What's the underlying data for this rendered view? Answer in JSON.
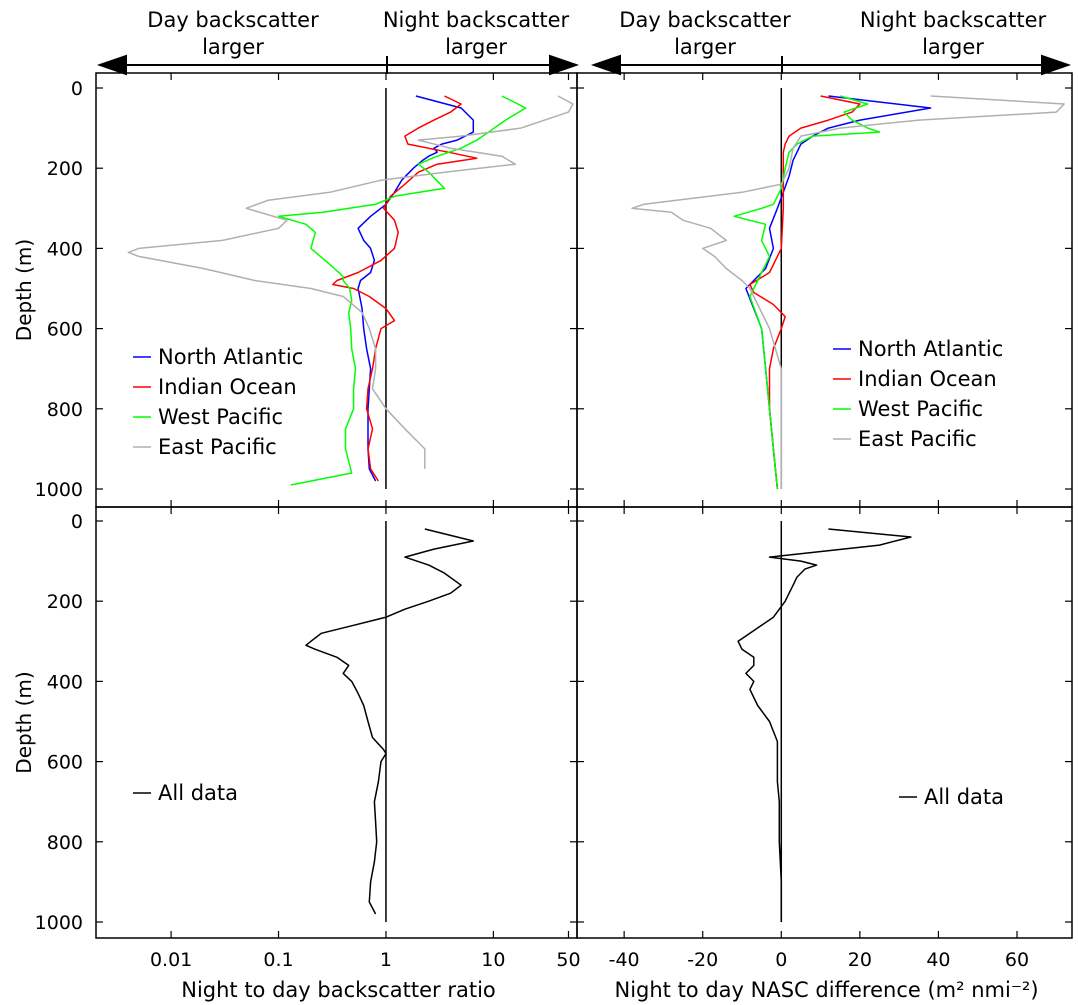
{
  "header": {
    "left_day": "Day backscatter\nlarger",
    "left_night": "Night backscatter\nlarger",
    "right_day": "Day backscatter\nlarger",
    "right_night": "Night backscatter\nlarger"
  },
  "colors": {
    "North Atlantic": "#0000ff",
    "Indian Ocean": "#ff0000",
    "West Pacific": "#00ff00",
    "East Pacific": "#b0b0b0",
    "All data": "#000000"
  },
  "chart_data": [
    {
      "id": "top-left",
      "type": "line",
      "orientation": "depth-profile",
      "xscale": "log",
      "xlim": [
        0.002,
        60
      ],
      "ylim": [
        1030,
        -40
      ],
      "reference_x": 1,
      "xticks": [
        0.01,
        0.1,
        1,
        10,
        50
      ],
      "xticklabels": [],
      "yticks": [
        0,
        200,
        400,
        600,
        800,
        1000
      ],
      "yticklabels": [
        "0",
        "200",
        "400",
        "600",
        "800",
        "1000"
      ],
      "ylabel": "Depth (m)",
      "xlabel": "",
      "legend_position": "center-left",
      "series": [
        {
          "name": "North Atlantic",
          "depth": [
            20,
            50,
            80,
            110,
            130,
            140,
            150,
            160,
            170,
            180,
            200,
            230,
            260,
            290,
            320,
            350,
            380,
            400,
            430,
            460,
            480,
            500,
            550,
            600,
            650,
            700,
            750,
            800,
            850,
            900,
            950,
            980
          ],
          "values": [
            1.9,
            5,
            6.5,
            6.5,
            4.6,
            3.3,
            2.8,
            3.0,
            2.5,
            2.2,
            1.8,
            1.4,
            1.2,
            1.0,
            0.72,
            0.55,
            0.62,
            0.72,
            0.78,
            0.72,
            0.58,
            0.55,
            0.6,
            0.62,
            0.66,
            0.72,
            0.7,
            0.68,
            0.68,
            0.68,
            0.7,
            0.8
          ]
        },
        {
          "name": "Indian Ocean",
          "depth": [
            20,
            40,
            60,
            80,
            100,
            120,
            140,
            160,
            175,
            190,
            210,
            240,
            270,
            300,
            330,
            360,
            400,
            430,
            460,
            480,
            490,
            500,
            520,
            550,
            580,
            600,
            650,
            700,
            750,
            800,
            850,
            900,
            950,
            980
          ],
          "values": [
            3.5,
            5.0,
            4.0,
            2.8,
            2.0,
            1.5,
            1.6,
            3.8,
            7.0,
            3.0,
            2.0,
            1.5,
            1.1,
            0.95,
            1.2,
            1.3,
            1.2,
            0.9,
            0.55,
            0.35,
            0.32,
            0.5,
            0.7,
            1.0,
            1.2,
            0.9,
            0.8,
            0.75,
            0.68,
            0.66,
            0.75,
            0.68,
            0.72,
            0.85
          ]
        },
        {
          "name": "West Pacific",
          "depth": [
            20,
            50,
            80,
            110,
            130,
            150,
            170,
            190,
            210,
            250,
            270,
            290,
            310,
            320,
            340,
            360,
            400,
            440,
            470,
            480,
            500,
            530,
            560,
            600,
            650,
            700,
            750,
            800,
            850,
            900,
            960,
            990
          ],
          "values": [
            12,
            20,
            13,
            9,
            7,
            5.0,
            3.0,
            2.0,
            2.5,
            3.5,
            1.2,
            0.8,
            0.26,
            0.1,
            0.18,
            0.22,
            0.2,
            0.3,
            0.4,
            0.4,
            0.46,
            0.48,
            0.45,
            0.47,
            0.48,
            0.52,
            0.5,
            0.5,
            0.42,
            0.42,
            0.48,
            0.13
          ]
        },
        {
          "name": "East Pacific",
          "depth": [
            20,
            40,
            60,
            80,
            100,
            120,
            130,
            150,
            170,
            190,
            210,
            230,
            260,
            280,
            300,
            330,
            350,
            380,
            400,
            410,
            420,
            450,
            480,
            500,
            520,
            560,
            600,
            650,
            700,
            750,
            800,
            850,
            900,
            950
          ],
          "values": [
            40,
            55,
            50,
            30,
            18,
            5,
            2,
            4,
            12,
            16,
            3.5,
            0.9,
            0.3,
            0.08,
            0.05,
            0.12,
            0.1,
            0.03,
            0.005,
            0.004,
            0.005,
            0.02,
            0.06,
            0.2,
            0.4,
            0.6,
            0.7,
            0.8,
            0.8,
            0.75,
            1.0,
            1.5,
            2.3,
            2.3
          ]
        }
      ]
    },
    {
      "id": "top-right",
      "type": "line",
      "orientation": "depth-profile",
      "xlim": [
        -52,
        74
      ],
      "ylim": [
        1030,
        -40
      ],
      "reference_x": 0,
      "xticks": [
        -40,
        -20,
        0,
        20,
        40,
        60
      ],
      "xticklabels": [],
      "yticks": [
        0,
        200,
        400,
        600,
        800,
        1000
      ],
      "yticklabels": [],
      "ylabel": "",
      "xlabel": "",
      "legend_position": "center-right",
      "series": [
        {
          "name": "North Atlantic",
          "depth": [
            20,
            50,
            80,
            100,
            120,
            140,
            160,
            180,
            220,
            300,
            350,
            400,
            450,
            480,
            500,
            550,
            600,
            700,
            800,
            900,
            1000
          ],
          "values": [
            12,
            38,
            20,
            12,
            8,
            5,
            4,
            3,
            2,
            -1,
            -3,
            -2,
            -4,
            -7,
            -9,
            -7,
            -5,
            -4,
            -3,
            -2,
            -1
          ]
        },
        {
          "name": "Indian Ocean",
          "depth": [
            20,
            40,
            60,
            80,
            100,
            120,
            140,
            160,
            200,
            250,
            300,
            400,
            460,
            490,
            510,
            540,
            570,
            600,
            650,
            700,
            800,
            900,
            1000
          ],
          "values": [
            10,
            20,
            18,
            12,
            5,
            2,
            1,
            0.5,
            0.5,
            0.5,
            0.5,
            0,
            -3,
            -8,
            -7,
            -2,
            1,
            0,
            -2,
            -3,
            -3,
            -2,
            -1
          ]
        },
        {
          "name": "West Pacific",
          "depth": [
            20,
            40,
            60,
            80,
            100,
            110,
            120,
            140,
            160,
            200,
            250,
            290,
            300,
            320,
            340,
            380,
            420,
            480,
            520,
            600,
            700,
            800,
            900,
            1000
          ],
          "values": [
            15,
            22,
            16,
            18,
            22,
            25,
            8,
            4,
            2,
            1,
            0,
            -2,
            -5,
            -12,
            -4,
            -5,
            -3,
            -6,
            -8,
            -5,
            -4,
            -3,
            -2,
            -1
          ]
        },
        {
          "name": "East Pacific",
          "depth": [
            20,
            40,
            60,
            80,
            100,
            120,
            150,
            200,
            240,
            260,
            290,
            300,
            310,
            330,
            350,
            380,
            400,
            420,
            450,
            480,
            500,
            600,
            700,
            800,
            900,
            1000
          ],
          "values": [
            38,
            72,
            70,
            35,
            15,
            5,
            3,
            2,
            0,
            -10,
            -35,
            -38,
            -28,
            -25,
            -18,
            -14,
            -20,
            -17,
            -14,
            -10,
            -8,
            -3,
            0,
            0,
            0,
            0
          ]
        }
      ]
    },
    {
      "id": "bottom-left",
      "type": "line",
      "orientation": "depth-profile",
      "xscale": "log",
      "xlim": [
        0.002,
        60
      ],
      "ylim": [
        1030,
        -40
      ],
      "reference_x": 1,
      "xticks": [
        0.01,
        0.1,
        1,
        10,
        50
      ],
      "xticklabels": [
        "0.01",
        "0.1",
        "1",
        "10",
        "50"
      ],
      "yticks": [
        0,
        200,
        400,
        600,
        800,
        1000
      ],
      "yticklabels": [
        "0",
        "200",
        "400",
        "600",
        "800",
        "1000"
      ],
      "ylabel": "Depth (m)",
      "xlabel": "Night to day backscatter ratio",
      "legend_position": "center-left",
      "series": [
        {
          "name": "All data",
          "depth": [
            20,
            50,
            70,
            90,
            110,
            130,
            160,
            180,
            200,
            220,
            240,
            260,
            280,
            300,
            310,
            320,
            340,
            360,
            380,
            400,
            430,
            460,
            500,
            540,
            570,
            580,
            600,
            650,
            700,
            750,
            800,
            850,
            900,
            950,
            980
          ],
          "values": [
            2.3,
            6.5,
            2.8,
            1.5,
            2.5,
            3.5,
            5.0,
            4.0,
            2.5,
            1.5,
            1.0,
            0.5,
            0.25,
            0.2,
            0.18,
            0.22,
            0.35,
            0.45,
            0.4,
            0.48,
            0.55,
            0.62,
            0.68,
            0.75,
            0.95,
            1.0,
            0.9,
            0.85,
            0.78,
            0.8,
            0.82,
            0.78,
            0.72,
            0.7,
            0.8
          ]
        }
      ]
    },
    {
      "id": "bottom-right",
      "type": "line",
      "orientation": "depth-profile",
      "xlim": [
        -52,
        74
      ],
      "ylim": [
        1030,
        -40
      ],
      "reference_x": 0,
      "xticks": [
        -40,
        -20,
        0,
        20,
        40,
        60
      ],
      "xticklabels": [
        "-40",
        "-20",
        "0",
        "20",
        "40",
        "60"
      ],
      "yticks": [
        0,
        200,
        400,
        600,
        800,
        1000
      ],
      "yticklabels": [],
      "ylabel": "",
      "xlabel": "Night to day NASC difference (m² nmi⁻²)",
      "legend_position": "center-right",
      "series": [
        {
          "name": "All data",
          "depth": [
            20,
            40,
            60,
            90,
            100,
            110,
            120,
            140,
            160,
            180,
            200,
            240,
            260,
            280,
            300,
            320,
            340,
            360,
            380,
            400,
            420,
            460,
            500,
            550,
            600,
            650,
            700,
            800,
            900,
            1000
          ],
          "values": [
            12,
            33,
            25,
            -3,
            5,
            9,
            6,
            4,
            3,
            2,
            1,
            -2,
            -5,
            -8,
            -11,
            -10,
            -7,
            -7,
            -9,
            -7,
            -8,
            -6,
            -3,
            -1,
            -1,
            -1,
            -0.5,
            -0.5,
            0,
            0
          ]
        }
      ]
    }
  ]
}
